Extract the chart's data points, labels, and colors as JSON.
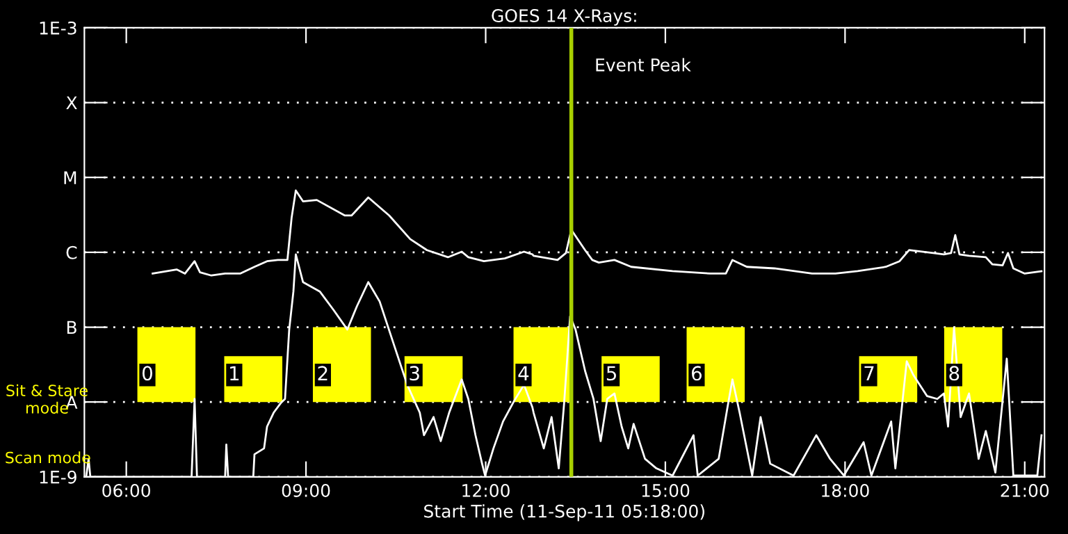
{
  "chart_data": {
    "type": "line",
    "title": "GOES 14 X-Rays:",
    "xlabel": "Start Time (11-Sep-11 05:18:00)",
    "xlim": [
      5.3,
      21.33
    ],
    "xticks": [
      {
        "value": 6,
        "label": "06:00"
      },
      {
        "value": 9,
        "label": "09:00"
      },
      {
        "value": 12,
        "label": "12:00"
      },
      {
        "value": 15,
        "label": "15:00"
      },
      {
        "value": 18,
        "label": "18:00"
      },
      {
        "value": 21,
        "label": "21:00"
      }
    ],
    "ylim": [
      1e-09,
      0.001
    ],
    "log": "y",
    "yticks": [
      {
        "value": 1e-09,
        "label": "1E-9"
      },
      {
        "value": 1e-08,
        "label": "A"
      },
      {
        "value": 1e-07,
        "label": "B"
      },
      {
        "value": 1e-06,
        "label": "C"
      },
      {
        "value": 1e-05,
        "label": "M"
      },
      {
        "value": 0.0001,
        "label": "X"
      },
      {
        "value": 0.001,
        "label": "1E-3"
      }
    ],
    "grid": "y",
    "legend": false,
    "series": [
      {
        "type": "bar",
        "color": "#ffff00",
        "x": [
          6.67,
          8.12,
          9.6,
          11.13,
          12.95,
          14.42,
          15.84,
          18.72,
          20.14
        ],
        "base": [
          1e-08,
          1e-08,
          1e-08,
          1e-08,
          1e-08,
          1e-08,
          1e-08,
          1e-08,
          1e-08
        ],
        "values": [
          9e-08,
          3.1e-08,
          9e-08,
          3.1e-08,
          9e-08,
          3.1e-08,
          9e-08,
          3.1e-08,
          9e-08
        ]
      },
      {
        "color": "#ffffff",
        "x": [
          6.44,
          6.84,
          6.98,
          7.14,
          7.23,
          7.42,
          7.65,
          7.9,
          8.14,
          8.35,
          8.53,
          8.69,
          8.76,
          8.83,
          8.95,
          9.18,
          9.65,
          9.76,
          10.04,
          10.39,
          10.74,
          11.02,
          11.37,
          11.6,
          11.71,
          11.97,
          12.32,
          12.64,
          12.78,
          12.8,
          13.2,
          13.34,
          13.43,
          13.66,
          13.78,
          13.89,
          14.15,
          14.43,
          15.12,
          15.75,
          16.01,
          16.12,
          16.36,
          16.82,
          17.45,
          17.84,
          18.21,
          18.68,
          18.91,
          19.07,
          19.47,
          19.65,
          19.77,
          19.84,
          19.91,
          20.07,
          20.35,
          20.46,
          20.63,
          20.72,
          20.81,
          21.0,
          21.28
        ],
        "values": [
          5.2e-07,
          5.9e-07,
          5.2e-07,
          7.6e-07,
          5.4e-07,
          4.9e-07,
          5.2e-07,
          5.2e-07,
          6.4e-07,
          7.6e-07,
          7.9e-07,
          7.9e-07,
          2.9e-06,
          6.7e-06,
          4.8e-06,
          5e-06,
          3.1e-06,
          3.1e-06,
          5.4e-06,
          3.1e-06,
          1.5e-06,
          1.07e-06,
          8.6e-07,
          1.02e-06,
          8.6e-07,
          7.6e-07,
          8.3e-07,
          1.02e-06,
          9.4e-07,
          9e-07,
          7.9e-07,
          9.8e-07,
          2e-06,
          1.07e-06,
          7.9e-07,
          7.3e-07,
          7.9e-07,
          6.4e-07,
          5.6e-07,
          5.2e-07,
          5.2e-07,
          7.9e-07,
          6.4e-07,
          6.1e-07,
          5.2e-07,
          5.2e-07,
          5.6e-07,
          6.4e-07,
          7.6e-07,
          1.07e-06,
          9.8e-07,
          9.4e-07,
          9.8e-07,
          1.7e-06,
          9.4e-07,
          9e-07,
          8.6e-07,
          6.9e-07,
          6.7e-07,
          9.8e-07,
          6.1e-07,
          5.2e-07,
          5.6e-07
        ]
      },
      {
        "color": "#ffffff",
        "x": [
          5.33,
          5.37,
          5.4,
          7.09,
          7.14,
          7.18,
          7.65,
          7.67,
          7.7,
          8.12,
          8.14,
          8.3,
          8.35,
          8.46,
          8.58,
          8.65,
          8.72,
          8.79,
          8.83,
          8.95,
          9.23,
          9.46,
          9.69,
          9.85,
          10.04,
          10.23,
          10.46,
          10.69,
          10.9,
          10.97,
          11.13,
          11.25,
          11.39,
          11.6,
          11.71,
          11.83,
          11.94,
          11.99,
          12.13,
          12.29,
          12.48,
          12.64,
          12.78,
          12.8,
          12.97,
          13.1,
          13.22,
          13.31,
          13.41,
          13.5,
          13.66,
          13.8,
          13.92,
          14.03,
          14.15,
          14.27,
          14.38,
          14.47,
          14.66,
          14.85,
          15.12,
          15.47,
          15.54,
          15.89,
          16.05,
          16.12,
          16.24,
          16.45,
          16.59,
          16.75,
          17.14,
          17.52,
          17.75,
          17.98,
          18.31,
          18.44,
          18.77,
          18.84,
          19.03,
          19.14,
          19.37,
          19.54,
          19.65,
          19.72,
          19.82,
          19.93,
          20.07,
          20.23,
          20.35,
          20.51,
          20.7,
          20.81,
          21.21,
          21.28
        ],
        "values": [
          1e-09,
          1.74e-09,
          1e-09,
          1e-09,
          1.1e-08,
          1e-09,
          1e-09,
          2.7e-09,
          1e-09,
          1e-09,
          2e-09,
          2.4e-09,
          4.7e-09,
          7.2e-09,
          9.7e-09,
          1.1e-08,
          9.3e-08,
          3e-07,
          9.4e-07,
          4e-07,
          3e-07,
          1.7e-07,
          9.3e-08,
          1.9e-07,
          4e-07,
          2.2e-07,
          6.1e-08,
          1.7e-08,
          7.2e-09,
          3.6e-09,
          6.3e-09,
          3e-09,
          7.2e-09,
          2e-08,
          1.1e-08,
          3.6e-09,
          1.5e-09,
          1.04e-09,
          2.4e-09,
          5.5e-09,
          1.05e-08,
          1.7e-08,
          8.5e-09,
          7.2e-09,
          2.4e-09,
          6.3e-09,
          1.3e-09,
          9.7e-09,
          1.4e-07,
          9.3e-08,
          2.6e-08,
          1.1e-08,
          3e-09,
          1.1e-08,
          1.3e-08,
          4.7e-09,
          2.4e-09,
          5.1e-09,
          1.74e-09,
          1.3e-09,
          1.04e-09,
          3.6e-09,
          1.04e-09,
          1.74e-09,
          9.7e-09,
          2e-08,
          7.2e-09,
          1.04e-09,
          6.3e-09,
          1.5e-09,
          1.04e-09,
          3.6e-09,
          1.74e-09,
          1.04e-09,
          2.9e-09,
          1.04e-09,
          5.5e-09,
          1.3e-09,
          3.5e-08,
          2.3e-08,
          1.2e-08,
          1.1e-08,
          1.3e-08,
          4.7e-09,
          1e-07,
          6.3e-09,
          1.3e-08,
          1.74e-09,
          4.1e-09,
          1.14e-09,
          3.8e-08,
          1.04e-09,
          1.04e-09,
          3.6e-09
        ]
      }
    ],
    "ref_lines": [
      {
        "axis": "x",
        "value": 13.43,
        "label": "Event Peak",
        "color": "#a8d000"
      }
    ],
    "annotations": [
      "0",
      "1",
      "2",
      "3",
      "4",
      "5",
      "6",
      "7",
      "8",
      "Sit & Stare\nmode",
      "Scan mode"
    ]
  }
}
